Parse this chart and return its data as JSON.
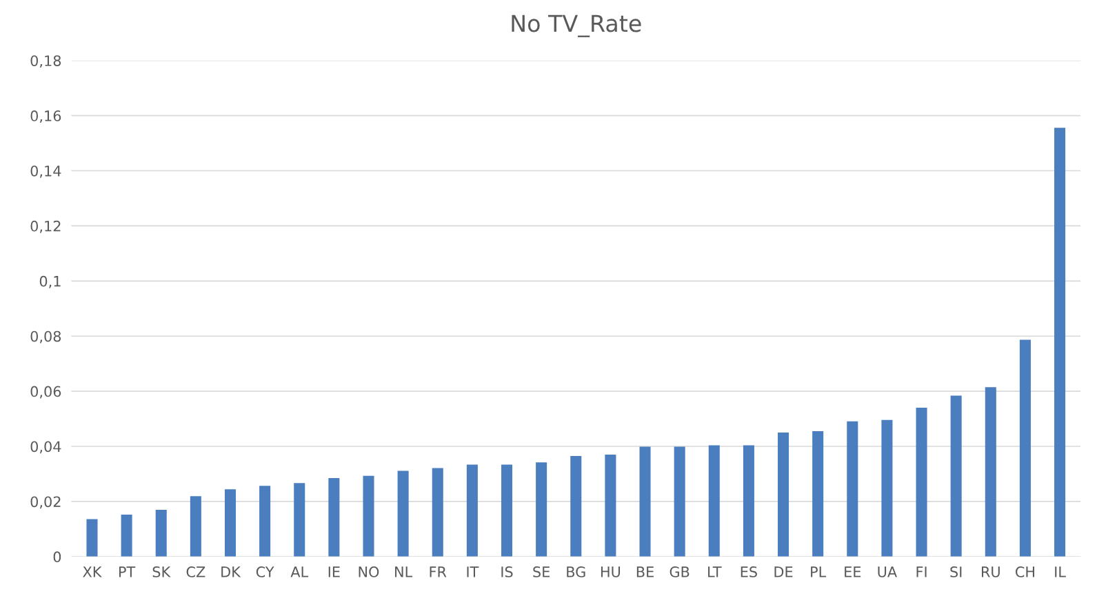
{
  "chart_data": {
    "type": "bar",
    "title": "No TV_Rate",
    "categories": [
      "XK",
      "PT",
      "SK",
      "CZ",
      "DK",
      "CY",
      "AL",
      "IE",
      "NO",
      "NL",
      "FR",
      "IT",
      "IS",
      "SE",
      "BG",
      "HU",
      "BE",
      "GB",
      "LT",
      "ES",
      "DE",
      "PL",
      "EE",
      "UA",
      "FI",
      "SI",
      "RU",
      "CH",
      "IL"
    ],
    "values": [
      0.0136,
      0.0152,
      0.017,
      0.0219,
      0.0244,
      0.0257,
      0.0267,
      0.0285,
      0.0293,
      0.0311,
      0.0321,
      0.0334,
      0.0334,
      0.0342,
      0.0365,
      0.037,
      0.0399,
      0.0399,
      0.0404,
      0.0404,
      0.045,
      0.0455,
      0.0491,
      0.0496,
      0.054,
      0.0584,
      0.0615,
      0.0787,
      0.1556
    ],
    "color": "#4a7ebf",
    "ylim": [
      0,
      0.18
    ],
    "yticks": [
      {
        "value": 0,
        "label": "0"
      },
      {
        "value": 0.02,
        "label": "0,02"
      },
      {
        "value": 0.04,
        "label": "0,04"
      },
      {
        "value": 0.06,
        "label": "0,06"
      },
      {
        "value": 0.08,
        "label": "0,08"
      },
      {
        "value": 0.1,
        "label": "0,1"
      },
      {
        "value": 0.12,
        "label": "0,12"
      },
      {
        "value": 0.14,
        "label": "0,14"
      },
      {
        "value": 0.16,
        "label": "0,16"
      },
      {
        "value": 0.18,
        "label": "0,18"
      }
    ],
    "grid": "y"
  }
}
